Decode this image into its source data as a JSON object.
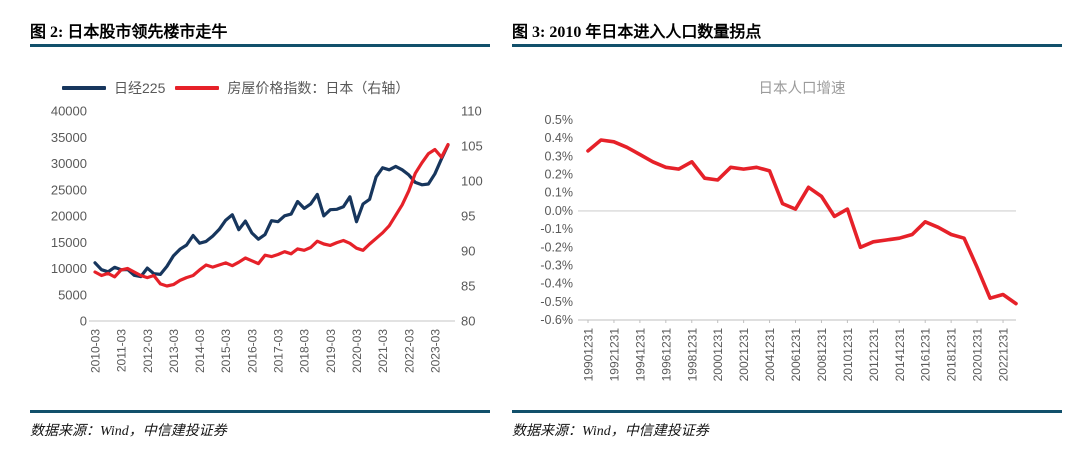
{
  "page": {
    "background": "#ffffff",
    "accent_color": "#12506b"
  },
  "fig2": {
    "title": "图 2: 日本股市领先楼市走牛",
    "source": "数据来源：Wind，中信建投证券",
    "legend": [
      {
        "label": "日经225",
        "color": "#17365d"
      },
      {
        "label": "房屋价格指数：日本（右轴）",
        "color": "#e62129"
      }
    ],
    "chart_data": {
      "type": "line",
      "frequency": "quarterly",
      "x_tick_labels": [
        "2010-03",
        "2011-03",
        "2012-03",
        "2013-03",
        "2014-03",
        "2015-03",
        "2016-03",
        "2017-03",
        "2018-03",
        "2019-03",
        "2020-03",
        "2021-03",
        "2022-03",
        "2023-03"
      ],
      "left_axis": {
        "min": 0,
        "max": 40000,
        "step": 5000
      },
      "right_axis": {
        "min": 80,
        "max": 110,
        "step": 5
      },
      "grid": false,
      "series": [
        {
          "name": "日经225",
          "axis": "left",
          "color": "#17365d",
          "values": [
            11089,
            9769,
            9369,
            10229,
            9755,
            9816,
            8700,
            8455,
            10084,
            9007,
            8870,
            10395,
            12398,
            13677,
            14456,
            16291,
            14828,
            15162,
            16174,
            17451,
            19207,
            20236,
            17388,
            19034,
            16759,
            15576,
            16450,
            19114,
            18909,
            20033,
            20356,
            22765,
            21454,
            22305,
            24120,
            20015,
            21206,
            21276,
            21756,
            23657,
            18917,
            22288,
            23185,
            27444,
            29179,
            28792,
            29453,
            28792,
            27821,
            26393,
            25937,
            26095,
            28041,
            30887,
            33500
          ]
        },
        {
          "name": "房屋价格指数：日本（右轴）",
          "axis": "right",
          "color": "#e62129",
          "values": [
            87.0,
            86.5,
            86.8,
            86.3,
            87.3,
            87.5,
            87.0,
            86.5,
            86.2,
            86.5,
            85.3,
            85.0,
            85.2,
            85.8,
            86.2,
            86.5,
            87.3,
            88.0,
            87.7,
            88.0,
            88.3,
            87.9,
            88.4,
            89.0,
            88.6,
            88.2,
            89.4,
            89.2,
            89.5,
            89.9,
            89.6,
            90.3,
            90.1,
            90.5,
            91.4,
            91.0,
            90.8,
            91.2,
            91.5,
            91.1,
            90.4,
            90.1,
            91.0,
            91.8,
            92.6,
            93.6,
            95.1,
            96.6,
            98.6,
            101.1,
            102.6,
            103.9,
            104.5,
            103.4,
            105.2
          ]
        }
      ]
    }
  },
  "fig3": {
    "title": "图 3: 2010 年日本进入人口数量拐点",
    "source": "数据来源：Wind，中信建投证券",
    "chart_data": {
      "type": "line",
      "title": "日本人口增速",
      "x_tick_labels": [
        "19901231",
        "19921231",
        "19941231",
        "19961231",
        "19981231",
        "20001231",
        "20021231",
        "20041231",
        "20061231",
        "20081231",
        "20101231",
        "20121231",
        "20141231",
        "20161231",
        "20181231",
        "20201231",
        "20221231"
      ],
      "years": [
        1990,
        1991,
        1992,
        1993,
        1994,
        1995,
        1996,
        1997,
        1998,
        1999,
        2000,
        2001,
        2002,
        2003,
        2004,
        2005,
        2006,
        2007,
        2008,
        2009,
        2010,
        2011,
        2012,
        2013,
        2014,
        2015,
        2016,
        2017,
        2018,
        2019,
        2020,
        2021,
        2022,
        2023
      ],
      "y_axis": {
        "min": -0.6,
        "max": 0.5,
        "step": 0.1,
        "unit": "%"
      },
      "grid_zero_line": true,
      "series": [
        {
          "name": "日本人口增速",
          "color": "#e62129",
          "values": [
            0.33,
            0.39,
            0.38,
            0.35,
            0.31,
            0.27,
            0.24,
            0.23,
            0.27,
            0.18,
            0.17,
            0.24,
            0.23,
            0.24,
            0.22,
            0.04,
            0.01,
            0.13,
            0.08,
            -0.03,
            0.01,
            -0.2,
            -0.17,
            -0.16,
            -0.15,
            -0.13,
            -0.06,
            -0.09,
            -0.13,
            -0.15,
            -0.31,
            -0.48,
            -0.46,
            -0.51
          ]
        }
      ]
    }
  }
}
